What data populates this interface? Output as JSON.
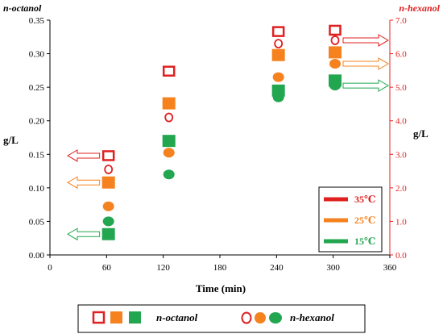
{
  "chart_data": {
    "type": "scatter",
    "xlabel": "Time (min)",
    "ylabel_left": "g/L",
    "ylabel_right": "g/L",
    "title_left": "n-octanol",
    "title_right": "n-hexanol",
    "x_ticks": [
      0,
      60,
      120,
      180,
      240,
      300,
      360
    ],
    "xlim": [
      0,
      360
    ],
    "y_left_ticks": [
      "0.00",
      "0.05",
      "0.10",
      "0.15",
      "0.20",
      "0.25",
      "0.30",
      "0.35"
    ],
    "ylim_left": [
      0,
      0.35
    ],
    "y_right_ticks": [
      "0.0",
      "1.0",
      "2.0",
      "3.0",
      "4.0",
      "5.0",
      "6.0",
      "7.0"
    ],
    "ylim_right": [
      0,
      7
    ],
    "legend_temps": [
      {
        "label": "35℃",
        "color": "#e02020"
      },
      {
        "label": "25℃",
        "color": "#f5821f"
      },
      {
        "label": "15℃",
        "color": "#22a650"
      }
    ],
    "series": [
      {
        "name": "n-octanol 35℃",
        "axis": "left",
        "marker": "square-open",
        "color": "#e02020",
        "x": [
          62,
          126,
          242,
          302
        ],
        "y": [
          0.148,
          0.274,
          0.333,
          0.335
        ]
      },
      {
        "name": "n-octanol 25℃",
        "axis": "left",
        "marker": "square",
        "color": "#f5821f",
        "x": [
          62,
          126,
          242,
          302
        ],
        "y": [
          0.108,
          0.226,
          0.298,
          0.302
        ]
      },
      {
        "name": "n-octanol 15℃",
        "axis": "left",
        "marker": "square",
        "color": "#22a650",
        "x": [
          62,
          126,
          242,
          302
        ],
        "y": [
          0.031,
          0.17,
          0.245,
          0.26
        ]
      },
      {
        "name": "n-hexanol 35℃",
        "axis": "right",
        "marker": "circle-open",
        "color": "#e02020",
        "x": [
          62,
          126,
          242,
          302
        ],
        "y": [
          2.55,
          4.1,
          6.3,
          6.4
        ]
      },
      {
        "name": "n-hexanol 25℃",
        "axis": "right",
        "marker": "circle",
        "color": "#f5821f",
        "x": [
          62,
          126,
          242,
          302
        ],
        "y": [
          1.45,
          3.05,
          5.3,
          5.7
        ]
      },
      {
        "name": "n-hexanol 15℃",
        "axis": "right",
        "marker": "circle",
        "color": "#22a650",
        "x": [
          62,
          126,
          242,
          302
        ],
        "y": [
          1.0,
          2.4,
          4.7,
          5.05
        ]
      }
    ],
    "bottom_legend": [
      {
        "label": "n-octanol",
        "marker": "squares"
      },
      {
        "label": "n-hexanol",
        "marker": "circles"
      }
    ]
  }
}
